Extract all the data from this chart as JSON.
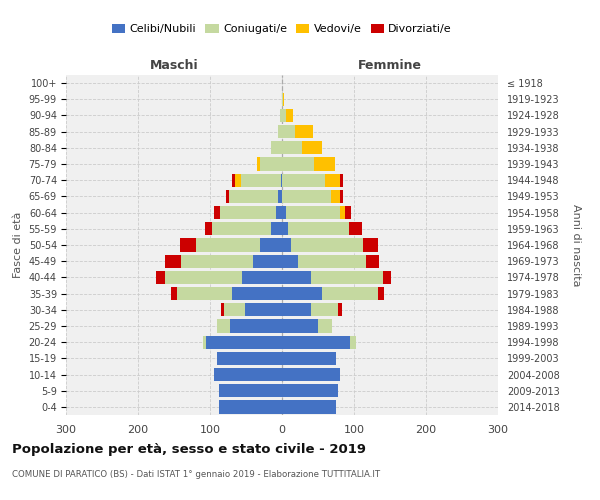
{
  "age_groups_bottom_to_top": [
    "0-4",
    "5-9",
    "10-14",
    "15-19",
    "20-24",
    "25-29",
    "30-34",
    "35-39",
    "40-44",
    "45-49",
    "50-54",
    "55-59",
    "60-64",
    "65-69",
    "70-74",
    "75-79",
    "80-84",
    "85-89",
    "90-94",
    "95-99",
    "100+"
  ],
  "birth_years_bottom_to_top": [
    "2014-2018",
    "2009-2013",
    "2004-2008",
    "1999-2003",
    "1994-1998",
    "1989-1993",
    "1984-1988",
    "1979-1983",
    "1974-1978",
    "1969-1973",
    "1964-1968",
    "1959-1963",
    "1954-1958",
    "1949-1953",
    "1944-1948",
    "1939-1943",
    "1934-1938",
    "1929-1933",
    "1924-1928",
    "1919-1923",
    "≤ 1918"
  ],
  "males_celibi": [
    88,
    88,
    95,
    90,
    105,
    72,
    52,
    70,
    55,
    40,
    30,
    15,
    8,
    5,
    2,
    0,
    0,
    0,
    0,
    0,
    0
  ],
  "males_coniugati": [
    0,
    0,
    0,
    0,
    5,
    18,
    28,
    76,
    108,
    100,
    90,
    82,
    78,
    68,
    55,
    30,
    15,
    5,
    3,
    0,
    0
  ],
  "males_vedovi": [
    0,
    0,
    0,
    0,
    0,
    0,
    0,
    0,
    0,
    0,
    0,
    0,
    0,
    0,
    8,
    5,
    0,
    0,
    0,
    0,
    0
  ],
  "males_divorziati": [
    0,
    0,
    0,
    0,
    0,
    0,
    5,
    8,
    12,
    22,
    22,
    10,
    8,
    5,
    5,
    0,
    0,
    0,
    0,
    0,
    0
  ],
  "females_nubili": [
    75,
    78,
    80,
    75,
    95,
    50,
    40,
    55,
    40,
    22,
    12,
    8,
    5,
    0,
    0,
    0,
    0,
    0,
    0,
    0,
    0
  ],
  "females_coniugate": [
    0,
    0,
    0,
    0,
    8,
    20,
    38,
    78,
    100,
    95,
    100,
    85,
    75,
    68,
    60,
    45,
    28,
    18,
    5,
    1,
    0
  ],
  "females_vedove": [
    0,
    0,
    0,
    0,
    0,
    0,
    0,
    0,
    0,
    0,
    0,
    0,
    8,
    12,
    20,
    28,
    28,
    25,
    10,
    2,
    0
  ],
  "females_divorziate": [
    0,
    0,
    0,
    0,
    0,
    0,
    5,
    8,
    12,
    18,
    22,
    18,
    8,
    5,
    5,
    0,
    0,
    0,
    0,
    0,
    0
  ],
  "color_celibi": "#4472c4",
  "color_coniugati": "#c5d9a0",
  "color_vedovi": "#ffc000",
  "color_divorziati": "#cc0000",
  "title": "Popolazione per età, sesso e stato civile - 2019",
  "subtitle": "COMUNE DI PARATICO (BS) - Dati ISTAT 1° gennaio 2019 - Elaborazione TUTTITALIA.IT",
  "label_maschi": "Maschi",
  "label_femmine": "Femmine",
  "ylabel_left": "Fasce di età",
  "ylabel_right": "Anni di nascita",
  "xlim": 300,
  "legend_labels": [
    "Celibi/Nubili",
    "Coniugati/e",
    "Vedovi/e",
    "Divorziati/e"
  ],
  "bg_color": "#f0f0f0"
}
